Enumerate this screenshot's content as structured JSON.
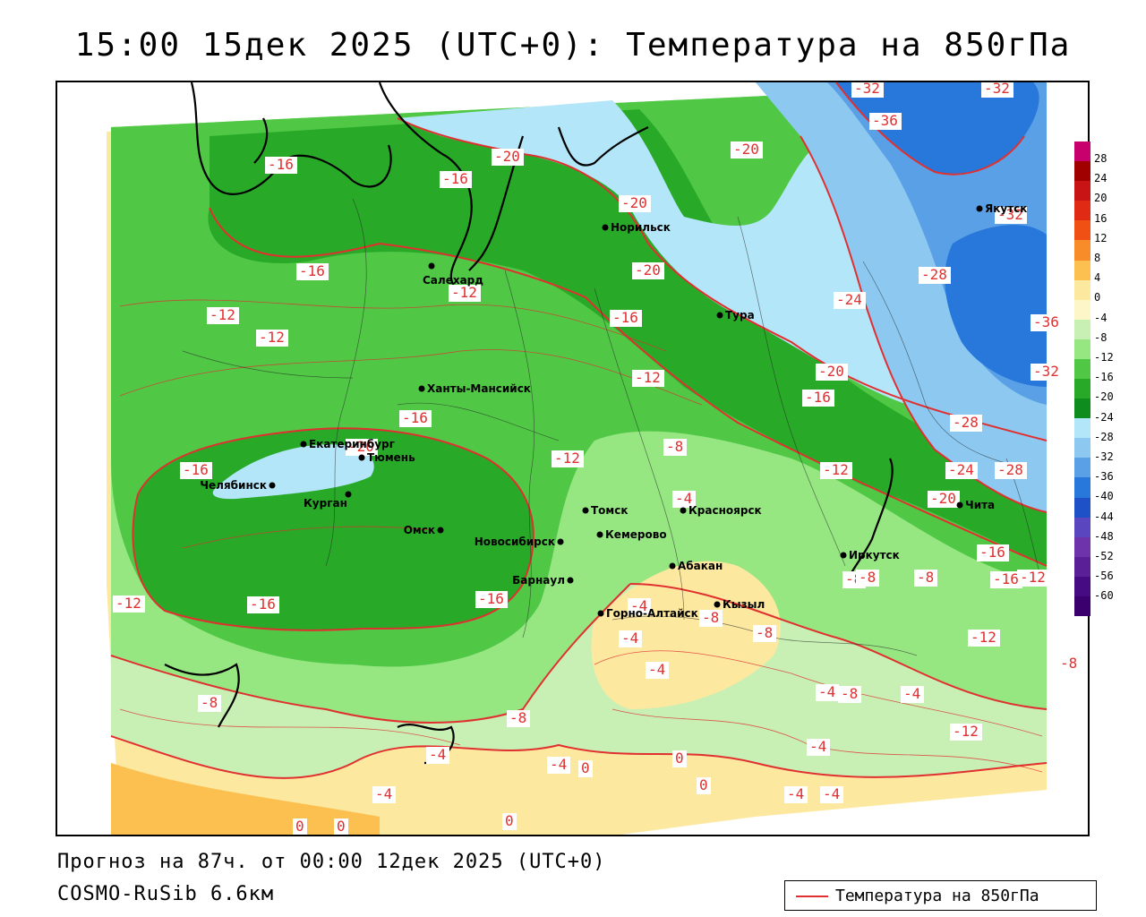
{
  "title": "15:00 15дек 2025 (UTC+0): Температура на 850гПа",
  "footer": {
    "forecast": "Прогноз на 87ч. от 00:00 12дек 2025 (UTC+0)",
    "model": "COSMO-RuSib 6.6км"
  },
  "legend": {
    "label": "Температура на 850гПа"
  },
  "colors": {
    "contour": "#e03030",
    "coast": "#000000",
    "border": "#222222"
  },
  "colorbar": {
    "labels": [
      "28",
      "24",
      "20",
      "16",
      "12",
      "8",
      "4",
      "0",
      "-4",
      "-8",
      "-12",
      "-16",
      "-20",
      "-24",
      "-28",
      "-32",
      "-36",
      "-40",
      "-44",
      "-48",
      "-52",
      "-56",
      "-60"
    ],
    "colors": [
      "#c8006e",
      "#a00000",
      "#c81414",
      "#e02a14",
      "#f05014",
      "#f88c28",
      "#fcc050",
      "#fde8a0",
      "#fdf6c8",
      "#c8f0b4",
      "#96e682",
      "#50c846",
      "#28aa28",
      "#0f8c1e",
      "#b4e6fa",
      "#8cc8f0",
      "#5aa0e6",
      "#2878dc",
      "#1e50c8",
      "#5a46be",
      "#6e32aa",
      "#5a1e96",
      "#460a82",
      "#3c006e"
    ]
  },
  "cities": [
    {
      "name": "Салехард"
    },
    {
      "name": "Норильск"
    },
    {
      "name": "Тура"
    },
    {
      "name": "Якутск"
    },
    {
      "name": "Ханты-Мансийск"
    },
    {
      "name": "Екатеринбург"
    },
    {
      "name": "Тюмень"
    },
    {
      "name": "Челябинск"
    },
    {
      "name": "Курган"
    },
    {
      "name": "Омск"
    },
    {
      "name": "Новосибирск"
    },
    {
      "name": "Томск"
    },
    {
      "name": "Кемерово"
    },
    {
      "name": "Барнаул"
    },
    {
      "name": "Красноярск"
    },
    {
      "name": "Абакан"
    },
    {
      "name": "Горно-Алтайск"
    },
    {
      "name": "Кызыл"
    },
    {
      "name": "Иркутск"
    },
    {
      "name": "Чита"
    }
  ],
  "contour_labels": [
    "-16",
    "-16",
    "-20",
    "-20",
    "-20",
    "-32",
    "-32",
    "-36",
    "-32",
    "-16",
    "-12",
    "-20",
    "-28",
    "-24",
    "-12",
    "-12",
    "-16",
    "-36",
    "-20",
    "-32",
    "-16",
    "-12",
    "-16",
    "-28",
    "-28",
    "-8",
    "-20",
    "-12",
    "-16",
    "-12",
    "-24",
    "-20",
    "-4",
    "-4",
    "-16",
    "-16",
    "-16",
    "-12",
    "-12",
    "-8",
    "-8",
    "-12",
    "-8",
    "-8",
    "-4",
    "-8",
    "-4",
    "-4",
    "-8",
    "-8",
    "-4",
    "-8",
    "-4",
    "-12",
    "-8",
    "-4",
    "-4",
    "0",
    "-4",
    "-4",
    "0",
    "0",
    "-4",
    "0",
    "0",
    "0",
    "-16"
  ]
}
